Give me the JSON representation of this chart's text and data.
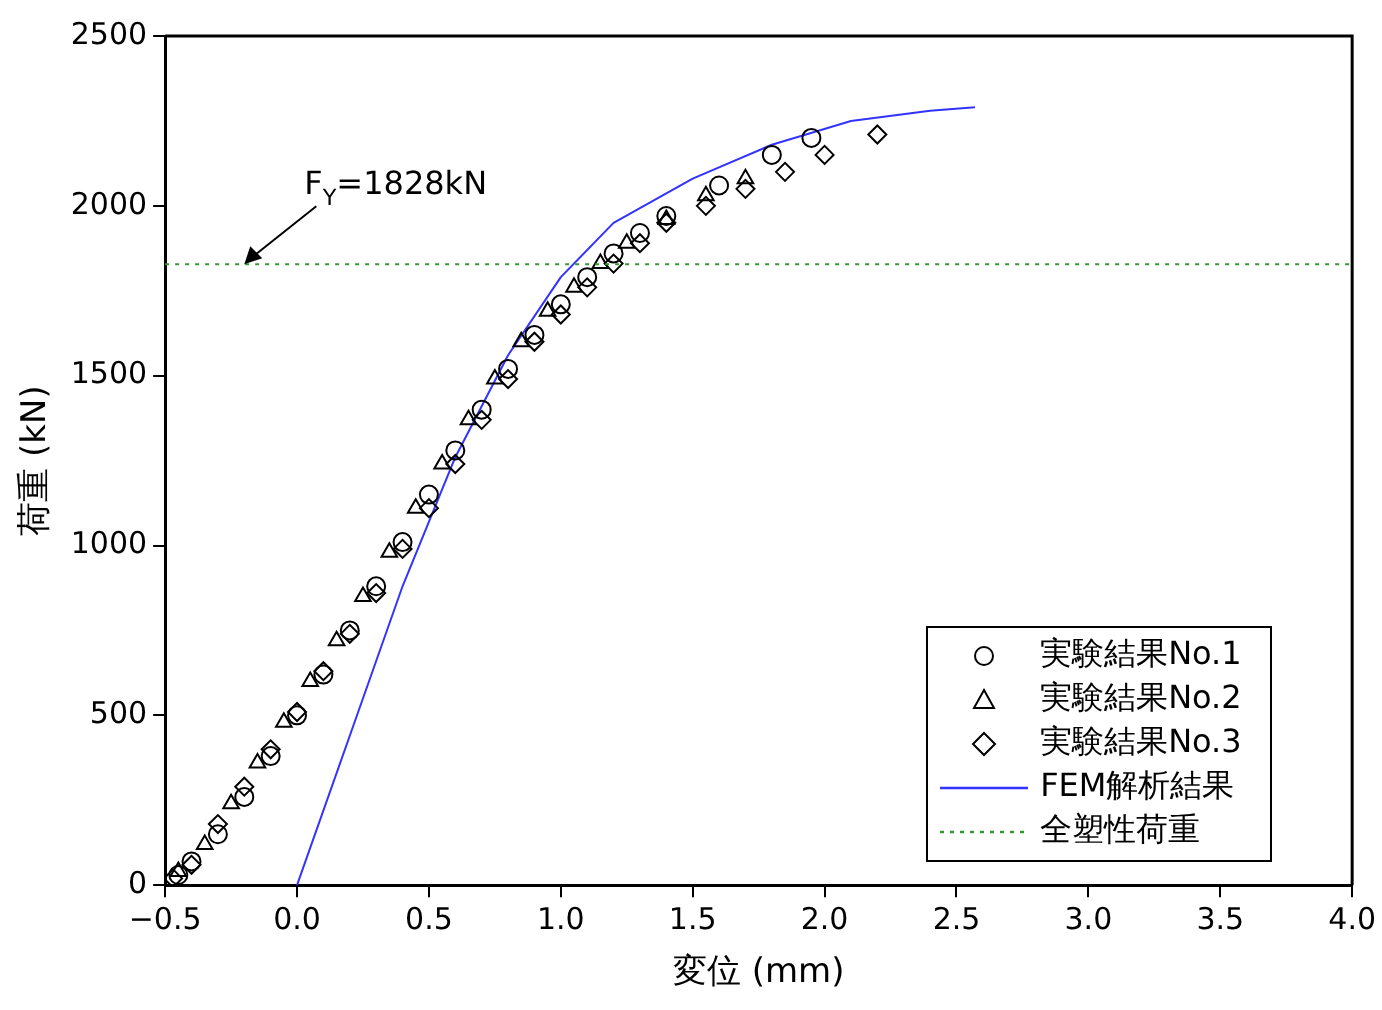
{
  "chart_data": {
    "type": "scatter",
    "xlabel": "変位 (mm)",
    "ylabel": "荷重 (kN)",
    "xlim": [
      -0.5,
      4.0
    ],
    "xticks": [
      {
        "value": -0.5,
        "label": "−0.5"
      },
      {
        "value": 0,
        "label": "0.0"
      },
      {
        "value": 0.5,
        "label": "0.5"
      },
      {
        "value": 1,
        "label": "1.0"
      },
      {
        "value": 1.5,
        "label": "1.5"
      },
      {
        "value": 2,
        "label": "2.0"
      },
      {
        "value": 2.5,
        "label": "2.5"
      },
      {
        "value": 3,
        "label": "3.0"
      },
      {
        "value": 3.5,
        "label": "3.5"
      },
      {
        "value": 4,
        "label": "4.0"
      }
    ],
    "ylim": [
      0,
      2500
    ],
    "yticks": [
      0,
      500,
      1000,
      1500,
      2000,
      2500
    ],
    "grid": false,
    "legend": "bottom right",
    "series": [
      {
        "name": "実験結果No.1",
        "marker": "circle",
        "color": "#000000",
        "x": [
          -0.45,
          -0.4,
          -0.3,
          -0.2,
          -0.1,
          0.0,
          0.1,
          0.2,
          0.3,
          0.4,
          0.5,
          0.6,
          0.7,
          0.8,
          0.9,
          1.0,
          1.1,
          1.2,
          1.3,
          1.4,
          1.6,
          1.8,
          1.95
        ],
        "values": [
          30,
          70,
          150,
          260,
          380,
          500,
          620,
          750,
          880,
          1010,
          1150,
          1280,
          1400,
          1520,
          1620,
          1710,
          1790,
          1860,
          1920,
          1970,
          2060,
          2150,
          2200
        ]
      },
      {
        "name": "実験結果No.2",
        "marker": "triangle",
        "color": "#000000",
        "x": [
          -0.45,
          -0.35,
          -0.25,
          -0.15,
          -0.05,
          0.05,
          0.15,
          0.25,
          0.35,
          0.45,
          0.55,
          0.65,
          0.75,
          0.85,
          0.95,
          1.05,
          1.15,
          1.25,
          1.4,
          1.55,
          1.7
        ],
        "values": [
          40,
          120,
          240,
          360,
          480,
          600,
          720,
          850,
          980,
          1110,
          1240,
          1370,
          1490,
          1600,
          1690,
          1760,
          1830,
          1890,
          1960,
          2030,
          2080
        ]
      },
      {
        "name": "実験結果No.3",
        "marker": "diamond",
        "color": "#000000",
        "x": [
          -0.47,
          -0.4,
          -0.3,
          -0.2,
          -0.1,
          0.0,
          0.1,
          0.2,
          0.3,
          0.4,
          0.5,
          0.6,
          0.7,
          0.8,
          0.9,
          1.0,
          1.1,
          1.2,
          1.3,
          1.4,
          1.55,
          1.7,
          1.85,
          2.0,
          2.2
        ],
        "values": [
          20,
          60,
          180,
          290,
          400,
          510,
          630,
          740,
          860,
          990,
          1110,
          1240,
          1370,
          1490,
          1600,
          1680,
          1760,
          1830,
          1890,
          1950,
          2000,
          2050,
          2100,
          2150,
          2210
        ]
      },
      {
        "name": "FEM解析結果",
        "type": "line",
        "marker": "none",
        "line_style": "solid",
        "color": "#3333ff",
        "x": [
          0,
          0.2,
          0.4,
          0.6,
          0.8,
          1.0,
          1.2,
          1.5,
          1.8,
          2.1,
          2.4,
          2.57
        ],
        "values": [
          0,
          440,
          880,
          1260,
          1560,
          1790,
          1950,
          2080,
          2180,
          2250,
          2280,
          2290
        ]
      }
    ],
    "ref_lines": [
      {
        "axis": "y",
        "value": 1828,
        "label": "全塑性荷重",
        "color": "#339933",
        "line_style": "dotted"
      }
    ],
    "annotations": [
      {
        "text": "F$_{Y}$=1828kN",
        "x": -0.2,
        "y": 1828
      }
    ]
  }
}
